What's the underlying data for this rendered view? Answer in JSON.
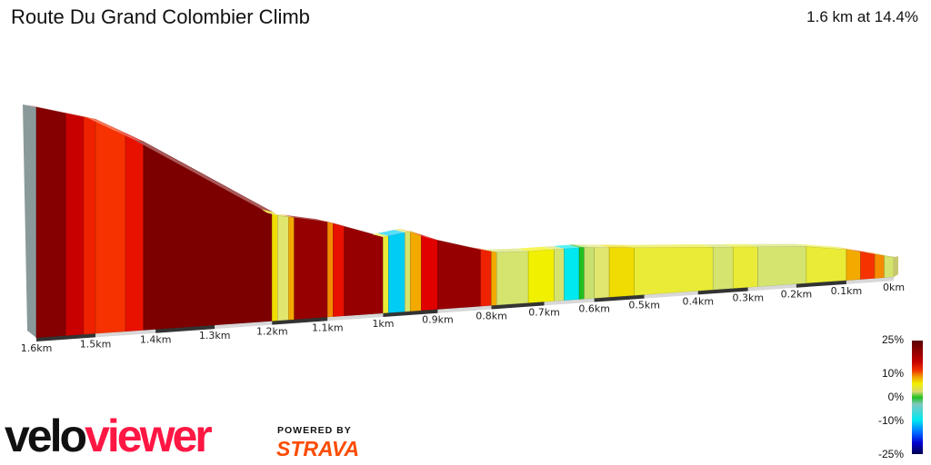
{
  "header": {
    "title": "Route Du Grand Colombier Climb",
    "summary": "1.6 km at 14.4%"
  },
  "chart_data": {
    "type": "area",
    "xlabel": "",
    "ylabel": "",
    "x_unit": "km",
    "xlim": [
      1.6,
      0
    ],
    "tick_labels": [
      "1.6km",
      "1.5km",
      "1.4km",
      "1.3km",
      "1.2km",
      "1.1km",
      "1km",
      "0.9km",
      "0.8km",
      "0.7km",
      "0.6km",
      "0.5km",
      "0.4km",
      "0.3km",
      "0.2km",
      "0.1km",
      "0km"
    ],
    "elevation_profile_m": {
      "distance_km": [
        1.6,
        1.5,
        1.41,
        1.27,
        1.19,
        1.1,
        1.0,
        0.95,
        0.87,
        0.78,
        0.62,
        0.53,
        0.14,
        0.05,
        0
      ],
      "relative_elevation_m": [
        232,
        214,
        182,
        129,
        94,
        83,
        62,
        66,
        47,
        35,
        35,
        31,
        17,
        6,
        0
      ]
    },
    "segments": [
      {
        "from": 1.6,
        "to": 1.55,
        "gradient": 20
      },
      {
        "from": 1.55,
        "to": 1.52,
        "gradient": 16
      },
      {
        "from": 1.52,
        "to": 1.5,
        "gradient": 13
      },
      {
        "from": 1.5,
        "to": 1.45,
        "gradient": 12
      },
      {
        "from": 1.45,
        "to": 1.42,
        "gradient": 14
      },
      {
        "from": 1.42,
        "to": 1.2,
        "gradient": 21
      },
      {
        "from": 1.2,
        "to": 1.19,
        "gradient": 7
      },
      {
        "from": 1.19,
        "to": 1.17,
        "gradient": 4
      },
      {
        "from": 1.17,
        "to": 1.16,
        "gradient": 9
      },
      {
        "from": 1.16,
        "to": 1.1,
        "gradient": 18
      },
      {
        "from": 1.1,
        "to": 1.09,
        "gradient": 10
      },
      {
        "from": 1.09,
        "to": 1.07,
        "gradient": 14
      },
      {
        "from": 1.07,
        "to": 1.0,
        "gradient": 18
      },
      {
        "from": 1.0,
        "to": 0.99,
        "gradient": 5
      },
      {
        "from": 0.99,
        "to": 0.96,
        "gradient": -7
      },
      {
        "from": 0.96,
        "to": 0.95,
        "gradient": 3
      },
      {
        "from": 0.95,
        "to": 0.93,
        "gradient": 9
      },
      {
        "from": 0.93,
        "to": 0.9,
        "gradient": 15
      },
      {
        "from": 0.9,
        "to": 0.82,
        "gradient": 18
      },
      {
        "from": 0.82,
        "to": 0.8,
        "gradient": 13
      },
      {
        "from": 0.8,
        "to": 0.79,
        "gradient": 9
      },
      {
        "from": 0.79,
        "to": 0.73,
        "gradient": 3
      },
      {
        "from": 0.73,
        "to": 0.68,
        "gradient": 6
      },
      {
        "from": 0.68,
        "to": 0.66,
        "gradient": 3
      },
      {
        "from": 0.66,
        "to": 0.63,
        "gradient": -6
      },
      {
        "from": 0.63,
        "to": 0.62,
        "gradient": 0
      },
      {
        "from": 0.62,
        "to": 0.6,
        "gradient": 2
      },
      {
        "from": 0.6,
        "to": 0.57,
        "gradient": 4
      },
      {
        "from": 0.57,
        "to": 0.52,
        "gradient": 7
      },
      {
        "from": 0.52,
        "to": 0.37,
        "gradient": 5
      },
      {
        "from": 0.37,
        "to": 0.33,
        "gradient": 3
      },
      {
        "from": 0.33,
        "to": 0.28,
        "gradient": 5
      },
      {
        "from": 0.28,
        "to": 0.18,
        "gradient": 3
      },
      {
        "from": 0.18,
        "to": 0.1,
        "gradient": 5
      },
      {
        "from": 0.1,
        "to": 0.07,
        "gradient": 9
      },
      {
        "from": 0.07,
        "to": 0.04,
        "gradient": 12
      },
      {
        "from": 0.04,
        "to": 0.02,
        "gradient": 10
      },
      {
        "from": 0.02,
        "to": 0,
        "gradient": 3
      }
    ],
    "legend": {
      "labels": [
        "25%",
        "10%",
        "0%",
        "-10%",
        "-25%"
      ]
    },
    "grid": false
  },
  "branding": {
    "logo_part1": "velo",
    "logo_part2": "viewer",
    "powered": "POWERED BY",
    "strava": "STRAVA"
  }
}
